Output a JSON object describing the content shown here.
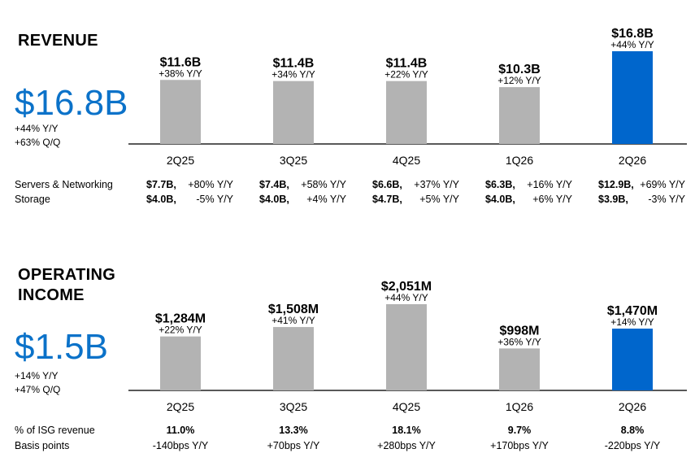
{
  "revenue": {
    "title": "REVENUE",
    "headline": "$16.8B",
    "yoy": "+44% Y/Y",
    "qoq": "+63% Q/Q",
    "row_labels": [
      "Servers & Networking",
      "Storage"
    ],
    "rows": [
      [
        [
          "$7.7B,",
          "+80% Y/Y"
        ],
        [
          "$7.4B,",
          "+58% Y/Y"
        ],
        [
          "$6.6B,",
          "+37% Y/Y"
        ],
        [
          "$6.3B,",
          "+16% Y/Y"
        ],
        [
          "$12.9B,",
          "+69% Y/Y"
        ]
      ],
      [
        [
          "$4.0B,",
          "-5% Y/Y"
        ],
        [
          "$4.0B,",
          "+4% Y/Y"
        ],
        [
          "$4.7B,",
          "+5% Y/Y"
        ],
        [
          "$4.0B,",
          "+6% Y/Y"
        ],
        [
          "$3.9B,",
          "-3% Y/Y"
        ]
      ]
    ]
  },
  "operating_income": {
    "title_line1": "OPERATING",
    "title_line2": "INCOME",
    "headline": "$1.5B",
    "yoy": "+14% Y/Y",
    "qoq": "+47% Q/Q",
    "row_labels": [
      "% of ISG revenue",
      "Basis points"
    ],
    "rows": [
      [
        "11.0%",
        "13.3%",
        "18.1%",
        "9.7%",
        "8.8%"
      ],
      [
        "-140bps Y/Y",
        "+70bps Y/Y",
        "+280bps Y/Y",
        "+170bps Y/Y",
        "-220bps Y/Y"
      ]
    ]
  },
  "colors": {
    "bar": "#b3b3b3",
    "highlight": "#0066cc",
    "headline": "#0b72c9",
    "axis": "#222222"
  },
  "chart_data": [
    {
      "type": "bar",
      "categories": [
        "2Q25",
        "3Q25",
        "4Q25",
        "1Q26",
        "2Q26"
      ],
      "values": [
        11.6,
        11.4,
        11.4,
        10.3,
        16.8
      ],
      "value_labels": [
        "$11.6B",
        "$11.4B",
        "$11.4B",
        "$10.3B",
        "$16.8B"
      ],
      "growth_labels": [
        "+38% Y/Y",
        "+34% Y/Y",
        "+22% Y/Y",
        "+12% Y/Y",
        "+44% Y/Y"
      ],
      "highlight_index": 4,
      "title": "REVENUE",
      "grid": false
    },
    {
      "type": "bar",
      "categories": [
        "2Q25",
        "3Q25",
        "4Q25",
        "1Q26",
        "2Q26"
      ],
      "values": [
        1284,
        1508,
        2051,
        998,
        1470
      ],
      "value_labels": [
        "$1,284M",
        "$1,508M",
        "$2,051M",
        "$998M",
        "$1,470M"
      ],
      "growth_labels": [
        "+22% Y/Y",
        "+41% Y/Y",
        "+44% Y/Y",
        "+36% Y/Y",
        "+14% Y/Y"
      ],
      "highlight_index": 4,
      "title": "OPERATING INCOME",
      "grid": false
    }
  ]
}
